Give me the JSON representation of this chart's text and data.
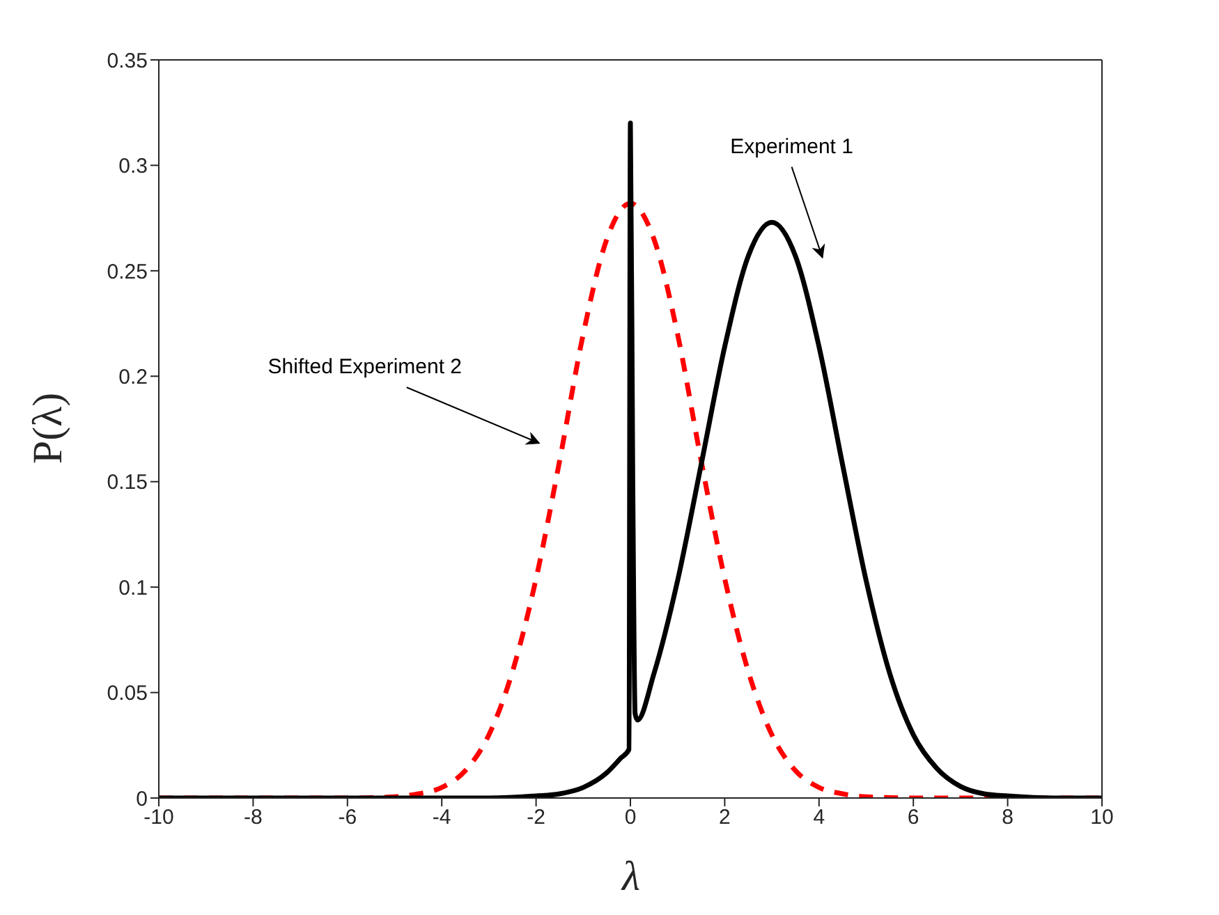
{
  "chart_data": {
    "type": "line",
    "xlabel": "λ",
    "ylabel": "P(λ)",
    "xlim": [
      -10,
      10
    ],
    "ylim": [
      0,
      0.35
    ],
    "xticks": [
      -10,
      -8,
      -6,
      -4,
      -2,
      0,
      2,
      4,
      6,
      8,
      10
    ],
    "yticks": [
      0,
      0.05,
      0.1,
      0.15,
      0.2,
      0.25,
      0.3,
      0.35
    ],
    "marker": "none",
    "series": [
      {
        "color": "#ff0000",
        "line_style": "dashed",
        "x": [
          -10,
          -6,
          -5,
          -4.5,
          -4,
          -3.5,
          -3,
          -2.5,
          -2,
          -1.5,
          -1,
          -0.5,
          0,
          0.5,
          1,
          1.5,
          2,
          2.5,
          3,
          3.5,
          4,
          4.5,
          5,
          6,
          10
        ],
        "values": [
          0,
          0,
          0.0006,
          0.002,
          0.005,
          0.013,
          0.03,
          0.06,
          0.104,
          0.16,
          0.22,
          0.265,
          0.282,
          0.265,
          0.22,
          0.16,
          0.104,
          0.06,
          0.03,
          0.013,
          0.005,
          0.002,
          0.0006,
          0,
          0
        ]
      },
      {
        "color": "#000000",
        "line_style": "solid",
        "x": [
          -10,
          -3,
          -2,
          -1.5,
          -1,
          -0.5,
          -0.2,
          -0.03,
          0,
          0.05,
          0.1,
          0.15,
          0.5,
          1,
          1.5,
          2,
          2.5,
          3,
          3.5,
          4,
          4.5,
          5,
          5.5,
          6,
          6.5,
          7,
          7.5,
          8,
          9,
          10
        ],
        "values": [
          0,
          0,
          0.001,
          0.002,
          0.005,
          0.012,
          0.019,
          0.023,
          0.32,
          0.15,
          0.04,
          0.037,
          0.059,
          0.103,
          0.158,
          0.214,
          0.257,
          0.273,
          0.257,
          0.214,
          0.158,
          0.103,
          0.059,
          0.03,
          0.014,
          0.0055,
          0.002,
          0.001,
          0,
          0
        ]
      }
    ],
    "annotations": [
      "Experiment 1",
      "Shifted Experiment 2"
    ]
  }
}
